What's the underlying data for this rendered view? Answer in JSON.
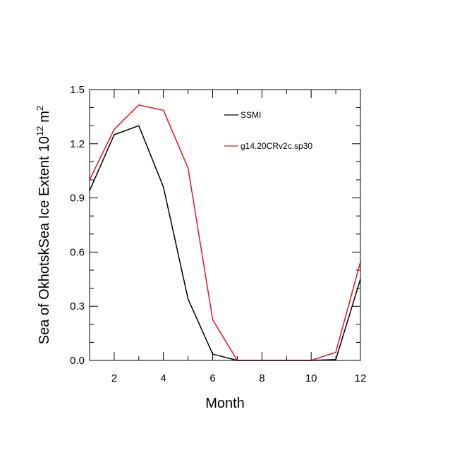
{
  "chart_data": {
    "type": "line",
    "title": "",
    "xlabel": "Month",
    "ylabel": "Sea of OkhotskSea Ice Extent",
    "ylabel_units_base": "10",
    "ylabel_units_exp": "12",
    "ylabel_units_unit": "m",
    "ylabel_units_unit_exp": "2",
    "xlim": [
      1,
      12
    ],
    "ylim": [
      0,
      1.5
    ],
    "x_major_ticks": [
      2,
      4,
      6,
      8,
      10,
      12
    ],
    "x_major_tick_labels": [
      "2",
      "4",
      "6",
      "8",
      "10",
      "12"
    ],
    "x_minor_ticks": [
      1,
      3,
      5,
      7,
      9,
      11
    ],
    "y_major_ticks": [
      0,
      0.3,
      0.6,
      0.9,
      1.2,
      1.5
    ],
    "y_major_tick_labels": [
      "0.0",
      "0.3",
      "0.6",
      "0.9",
      "1.2",
      "1.5"
    ],
    "y_minor_ticks": [
      0.1,
      0.2,
      0.4,
      0.5,
      0.7,
      0.8,
      1.0,
      1.1,
      1.3,
      1.4
    ],
    "grid": false,
    "legend_position": "top-right",
    "x": [
      1,
      2,
      3,
      4,
      5,
      6,
      7,
      8,
      9,
      10,
      11,
      12
    ],
    "series": [
      {
        "name": "SSMI",
        "color": "#000000",
        "values": [
          0.94,
          1.25,
          1.3,
          0.96,
          0.34,
          0.035,
          0.0,
          0.0,
          0.0,
          0.0,
          0.005,
          0.45
        ]
      },
      {
        "name": "g14.20CRv2c.sp30",
        "color": "#e8141b",
        "values": [
          1.0,
          1.28,
          1.415,
          1.385,
          1.065,
          0.225,
          0.0,
          0.0,
          0.0,
          0.0,
          0.045,
          0.545
        ]
      }
    ]
  }
}
